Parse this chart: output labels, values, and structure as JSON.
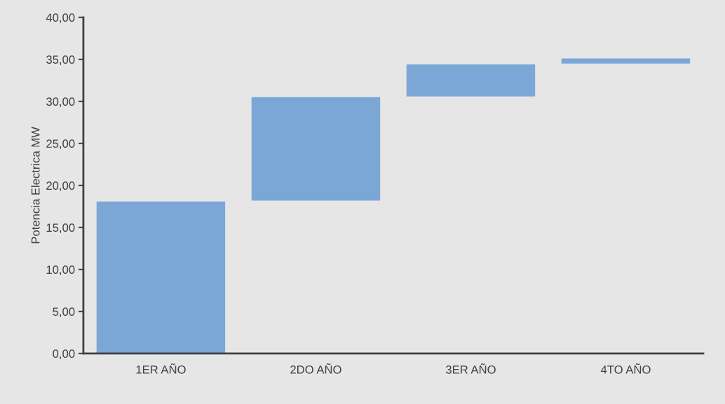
{
  "chart_data": {
    "type": "bar",
    "ylabel": "Potencia Electrica MW",
    "categories": [
      "1ER AÑO",
      "2DO AÑO",
      "3ER AÑO",
      "4TO AÑO"
    ],
    "values": [
      18.1,
      12.3,
      3.8,
      0.6
    ],
    "base": [
      0,
      18.2,
      30.6,
      34.5
    ],
    "color": "#7ba7d7",
    "ylim": [
      0,
      40
    ],
    "yticks": [
      {
        "value": 0,
        "label": "0,00"
      },
      {
        "value": 5,
        "label": "5,00"
      },
      {
        "value": 10,
        "label": "10,00"
      },
      {
        "value": 15,
        "label": "15,00"
      },
      {
        "value": 20,
        "label": "20,00"
      },
      {
        "value": 25,
        "label": "25,00"
      },
      {
        "value": 30,
        "label": "30,00"
      },
      {
        "value": 35,
        "label": "35,00"
      },
      {
        "value": 40,
        "label": "40,00"
      }
    ],
    "grid": false,
    "legend": false
  }
}
